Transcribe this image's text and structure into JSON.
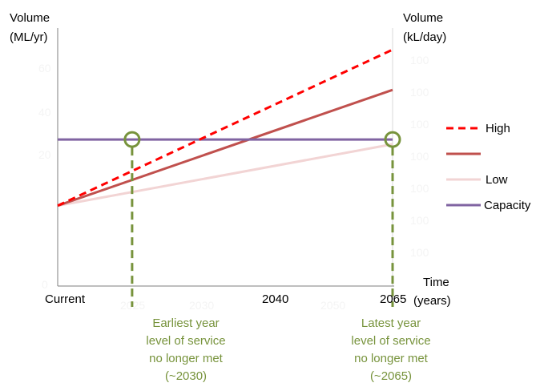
{
  "chart_data": {
    "type": "line",
    "y_axis_left": {
      "title_line1": "Volume",
      "title_line2": "(ML/yr)"
    },
    "y_axis_right": {
      "title_line1": "Volume",
      "title_line2": "(kL/day)"
    },
    "x_axis": {
      "title_line1": "Time",
      "title_line2": "(years)",
      "ticks": [
        {
          "label": "Current",
          "year": 2020
        },
        {
          "label": "2040",
          "year": 2040
        },
        {
          "label": "2065",
          "year": 2065
        }
      ]
    },
    "xlim": [
      2020,
      2065
    ],
    "ylim": [
      0,
      100
    ],
    "grid": false,
    "legend_position": "right",
    "series": [
      {
        "name": "High",
        "color": "#ff0000",
        "dash": true,
        "x": [
          2020,
          2065
        ],
        "y": [
          34,
          100
        ]
      },
      {
        "name": "",
        "color": "#c0504d",
        "dash": false,
        "x": [
          2020,
          2065
        ],
        "y": [
          34,
          83
        ]
      },
      {
        "name": "Low",
        "color": "#f2d4d4",
        "dash": false,
        "x": [
          2020,
          2065
        ],
        "y": [
          34,
          60
        ]
      },
      {
        "name": "Capacity",
        "color": "#8064a2",
        "dash": false,
        "x": [
          2020,
          2065
        ],
        "y": [
          62,
          62
        ]
      }
    ],
    "annotations": [
      {
        "year": 2030,
        "color": "#77933c",
        "label_lines": [
          "Earliest year",
          "level of service",
          "no longer met",
          "(~2030)"
        ]
      },
      {
        "year": 2065,
        "color": "#77933c",
        "label_lines": [
          "Latest year",
          "level of service",
          "no longer met",
          "(~2065)"
        ]
      }
    ]
  }
}
